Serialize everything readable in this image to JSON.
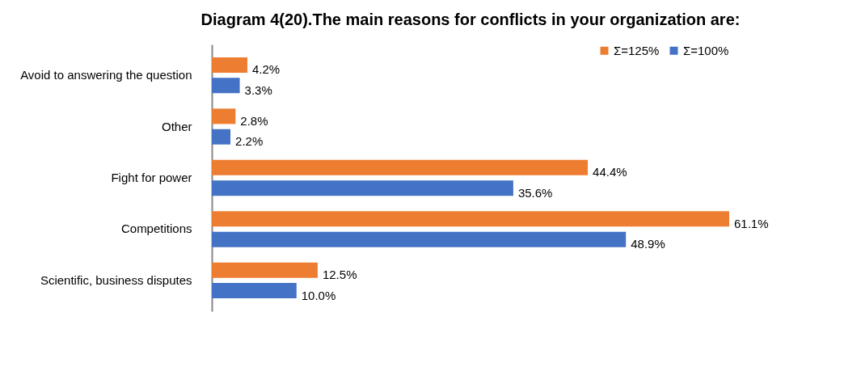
{
  "chart_data": {
    "type": "bar",
    "orientation": "horizontal",
    "title": "Diagram 4(20).The main reasons for conflicts in your organization are:",
    "categories": [
      "Avoid to answering  the question",
      "Other",
      "Fight for power",
      "Competitions",
      "Scientific, business disputes"
    ],
    "series": [
      {
        "name": "Σ=125%",
        "color": "#ed7d31",
        "values": [
          4.2,
          2.8,
          44.4,
          61.1,
          12.5
        ],
        "value_labels": [
          "4.2%",
          "2.8%",
          "44.4%",
          "61.1%",
          "12.5%"
        ]
      },
      {
        "name": "Σ=100%",
        "color": "#4472c4",
        "values": [
          3.3,
          2.2,
          35.6,
          48.9,
          10.0
        ],
        "value_labels": [
          "3.3%",
          "2.2%",
          "35.6%",
          "48.9%",
          "10.0%"
        ]
      }
    ],
    "legend": "top right",
    "grid": false
  }
}
